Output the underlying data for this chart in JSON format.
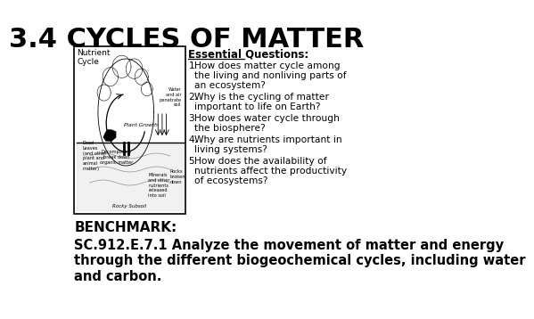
{
  "title": "3.4 CYCLES OF MATTER",
  "title_fontsize": 22,
  "title_fontweight": "bold",
  "background_color": "#ffffff",
  "essential_questions_header": "Essential Questions:",
  "essential_questions": [
    "How does matter cycle among\nthe living and nonliving parts of\nan ecosystem?",
    "Why is the cycling of matter\nimportant to life on Earth?",
    "How does water cycle through\nthe biosphere?",
    "Why are nutrients important in\nliving systems?",
    "How does the availability of\nnutrients affect the productivity\nof ecosystems?"
  ],
  "benchmark_label": "BENCHMARK:",
  "benchmark_text": "SC.912.E.7.1 Analyze the movement of matter and energy\nthrough the different biogeochemical cycles, including water\nand carbon.",
  "image_placeholder_label": "Nutrient\nCycle",
  "eq_fontsize": 8.5,
  "benchmark_fontsize": 10.5,
  "benchmark_label_fontsize": 11
}
